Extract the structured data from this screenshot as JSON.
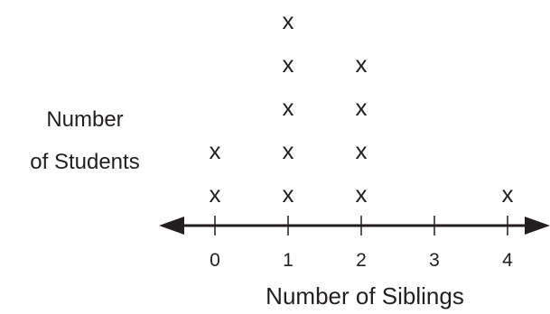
{
  "chart_data": {
    "type": "line-plot",
    "mark_symbol": "x",
    "categories": [
      0,
      1,
      2,
      3,
      4
    ],
    "values": [
      2,
      5,
      4,
      0,
      1
    ],
    "xlabel": "Number of Siblings",
    "ylabel_lines": [
      "Number",
      "of Students"
    ],
    "xlim": [
      0,
      4
    ],
    "grid": false
  }
}
